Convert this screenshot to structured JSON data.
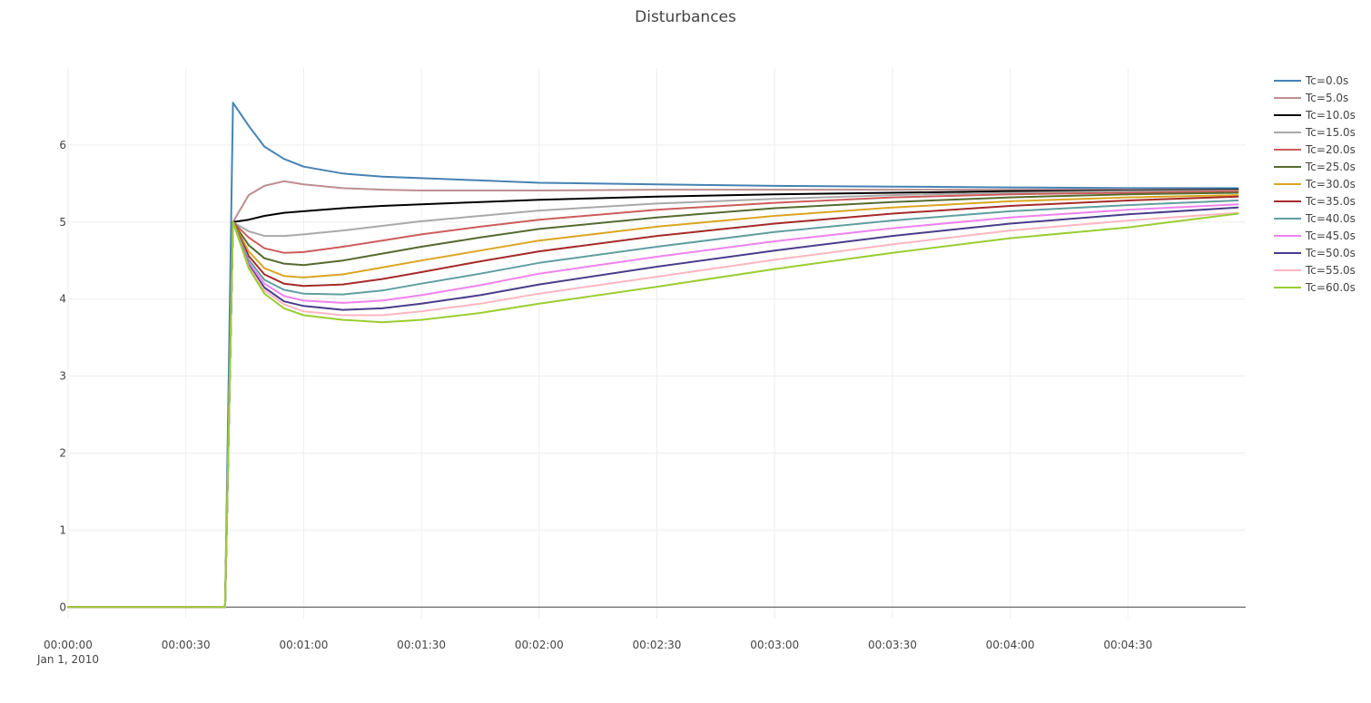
{
  "chart_data": {
    "type": "line",
    "title": "Disturbances",
    "xlabel": "",
    "ylabel": "",
    "x_axis": {
      "type": "time",
      "range": [
        "2010-01-01 00:00:00",
        "2010-01-01 00:05:00"
      ],
      "ticks": [
        "00:00:00",
        "00:00:30",
        "00:01:00",
        "00:01:30",
        "00:02:00",
        "00:02:30",
        "00:03:00",
        "00:03:30",
        "00:04:00",
        "00:04:30"
      ],
      "tick_values": [
        "2010-01-01 00:00:00",
        "2010-01-01 00:00:30",
        "2010-01-01 00:01:00",
        "2010-01-01 00:01:30",
        "2010-01-01 00:02:00",
        "2010-01-01 00:02:30",
        "2010-01-01 00:03:00",
        "2010-01-01 00:03:30",
        "2010-01-01 00:04:00",
        "2010-01-01 00:04:30"
      ],
      "date_label": "Jan 1, 2010"
    },
    "y_axis": {
      "range": [
        -0.15,
        7.0
      ],
      "ticks": [
        "0",
        "1",
        "2",
        "3",
        "4",
        "5",
        "6"
      ],
      "tick_values": [
        0,
        1,
        2,
        3,
        4,
        5,
        6
      ]
    },
    "grid": true,
    "legend": {
      "position": "top-right"
    },
    "x": [
      "2010-01-01 00:00:00",
      "2010-01-01 00:00:40",
      "2010-01-01 00:00:42",
      "2010-01-01 00:00:46",
      "2010-01-01 00:00:50",
      "2010-01-01 00:00:55",
      "2010-01-01 00:01:00",
      "2010-01-01 00:01:10",
      "2010-01-01 00:01:20",
      "2010-01-01 00:01:30",
      "2010-01-01 00:01:45",
      "2010-01-01 00:02:00",
      "2010-01-01 00:02:30",
      "2010-01-01 00:03:00",
      "2010-01-01 00:03:30",
      "2010-01-01 00:04:00",
      "2010-01-01 00:04:30",
      "2010-01-01 00:04:58"
    ],
    "series": [
      {
        "name": "Tc=0.0s",
        "color": "#4682b4",
        "values": [
          0,
          0,
          6.55,
          6.25,
          5.98,
          5.82,
          5.72,
          5.63,
          5.59,
          5.57,
          5.54,
          5.51,
          5.49,
          5.47,
          5.46,
          5.45,
          5.44,
          5.44
        ]
      },
      {
        "name": "Tc=5.0s",
        "color": "#bc8f8f",
        "values": [
          0,
          0,
          5.0,
          5.35,
          5.47,
          5.53,
          5.49,
          5.44,
          5.42,
          5.41,
          5.41,
          5.41,
          5.42,
          5.42,
          5.42,
          5.42,
          5.42,
          5.42
        ]
      },
      {
        "name": "Tc=10.0s",
        "color": "#000000",
        "values": [
          0,
          0,
          5.0,
          5.03,
          5.08,
          5.12,
          5.14,
          5.18,
          5.21,
          5.23,
          5.26,
          5.29,
          5.33,
          5.36,
          5.38,
          5.4,
          5.41,
          5.42
        ]
      },
      {
        "name": "Tc=15.0s",
        "color": "#a9a9a9",
        "values": [
          0,
          0,
          5.0,
          4.88,
          4.82,
          4.82,
          4.84,
          4.89,
          4.95,
          5.01,
          5.08,
          5.15,
          5.24,
          5.3,
          5.35,
          5.38,
          5.4,
          5.41
        ]
      },
      {
        "name": "Tc=20.0s",
        "color": "#cd5c5c",
        "values": [
          0,
          0,
          5.0,
          4.8,
          4.66,
          4.6,
          4.61,
          4.68,
          4.76,
          4.84,
          4.94,
          5.03,
          5.16,
          5.25,
          5.32,
          5.36,
          5.38,
          5.4
        ]
      },
      {
        "name": "Tc=25.0s",
        "color": "#556b2f",
        "values": [
          0,
          0,
          5.0,
          4.7,
          4.53,
          4.46,
          4.44,
          4.5,
          4.59,
          4.68,
          4.8,
          4.91,
          5.06,
          5.18,
          5.26,
          5.32,
          5.36,
          5.38
        ]
      },
      {
        "name": "Tc=30.0s",
        "color": "#daa520",
        "values": [
          0,
          0,
          5.0,
          4.62,
          4.4,
          4.3,
          4.28,
          4.32,
          4.41,
          4.5,
          4.63,
          4.76,
          4.94,
          5.08,
          5.19,
          5.27,
          5.32,
          5.35
        ]
      },
      {
        "name": "Tc=35.0s",
        "color": "#a52a2a",
        "values": [
          0,
          0,
          5.0,
          4.56,
          4.32,
          4.2,
          4.17,
          4.19,
          4.26,
          4.35,
          4.49,
          4.62,
          4.82,
          4.98,
          5.11,
          5.21,
          5.28,
          5.33
        ]
      },
      {
        "name": "Tc=40.0s",
        "color": "#5f9ea0",
        "values": [
          0,
          0,
          5.0,
          4.51,
          4.25,
          4.12,
          4.07,
          4.06,
          4.11,
          4.2,
          4.33,
          4.47,
          4.68,
          4.87,
          5.02,
          5.14,
          5.22,
          5.28
        ]
      },
      {
        "name": "Tc=45.0s",
        "color": "#ee82ee",
        "values": [
          0,
          0,
          5.0,
          4.47,
          4.2,
          4.04,
          3.98,
          3.95,
          3.98,
          4.05,
          4.18,
          4.33,
          4.55,
          4.75,
          4.92,
          5.06,
          5.16,
          5.23
        ]
      },
      {
        "name": "Tc=50.0s",
        "color": "#483d8b",
        "values": [
          0,
          0,
          5.0,
          4.44,
          4.15,
          3.97,
          3.91,
          3.86,
          3.88,
          3.94,
          4.05,
          4.19,
          4.42,
          4.63,
          4.82,
          4.98,
          5.1,
          5.19
        ]
      },
      {
        "name": "Tc=55.0s",
        "color": "#ffb6c1",
        "values": [
          0,
          0,
          5.0,
          4.42,
          4.11,
          3.93,
          3.84,
          3.79,
          3.79,
          3.84,
          3.94,
          4.07,
          4.29,
          4.51,
          4.71,
          4.89,
          5.02,
          5.12
        ]
      },
      {
        "name": "Tc=60.0s",
        "color": "#9acd32",
        "values": [
          0,
          0,
          5.0,
          4.4,
          4.07,
          3.88,
          3.79,
          3.73,
          3.7,
          3.73,
          3.82,
          3.94,
          4.16,
          4.39,
          4.6,
          4.79,
          4.93,
          5.11
        ]
      }
    ]
  }
}
